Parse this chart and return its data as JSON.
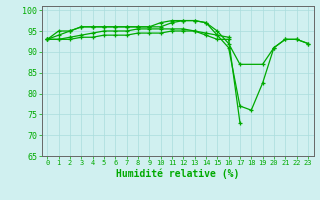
{
  "x": [
    0,
    1,
    2,
    3,
    4,
    5,
    6,
    7,
    8,
    9,
    10,
    11,
    12,
    13,
    14,
    15,
    16,
    17,
    18,
    19,
    20,
    21,
    22,
    23
  ],
  "line1": [
    93,
    94,
    95,
    96,
    96,
    96,
    96,
    96,
    96,
    96,
    97,
    97.5,
    97.5,
    97.5,
    97,
    94,
    91,
    77,
    76,
    82.5,
    91,
    93,
    93,
    92
  ],
  "line2": [
    93,
    95,
    95,
    96,
    96,
    96,
    96,
    96,
    96,
    96,
    96,
    97,
    97.5,
    97.5,
    97,
    95,
    92,
    87,
    null,
    87,
    91,
    93,
    93,
    92
  ],
  "line3": [
    93,
    93,
    93.5,
    94,
    94.5,
    95,
    95,
    95,
    95.5,
    95.5,
    95.5,
    95.5,
    95.5,
    95,
    94,
    93,
    93,
    73,
    null,
    null,
    null,
    null,
    null,
    null
  ],
  "line4": [
    93,
    93,
    93,
    93.5,
    93.5,
    94,
    94,
    94,
    94.5,
    94.5,
    94.5,
    95,
    95,
    95,
    94.5,
    94,
    93.5,
    null,
    null,
    null,
    null,
    null,
    null,
    null
  ],
  "line_color": "#00aa00",
  "marker": "+",
  "bg_color": "#d0f0f0",
  "grid_color": "#aadddd",
  "xlabel": "Humidité relative (%)",
  "ylim": [
    65,
    101
  ],
  "xlim": [
    -0.5,
    23.5
  ],
  "yticks": [
    65,
    70,
    75,
    80,
    85,
    90,
    95,
    100
  ],
  "xticks": [
    0,
    1,
    2,
    3,
    4,
    5,
    6,
    7,
    8,
    9,
    10,
    11,
    12,
    13,
    14,
    15,
    16,
    17,
    18,
    19,
    20,
    21,
    22,
    23
  ],
  "tick_color": "#00aa00",
  "label_color": "#00aa00",
  "axis_color": "#666666",
  "xtick_fontsize": 5.0,
  "ytick_fontsize": 6.0,
  "xlabel_fontsize": 7.0
}
